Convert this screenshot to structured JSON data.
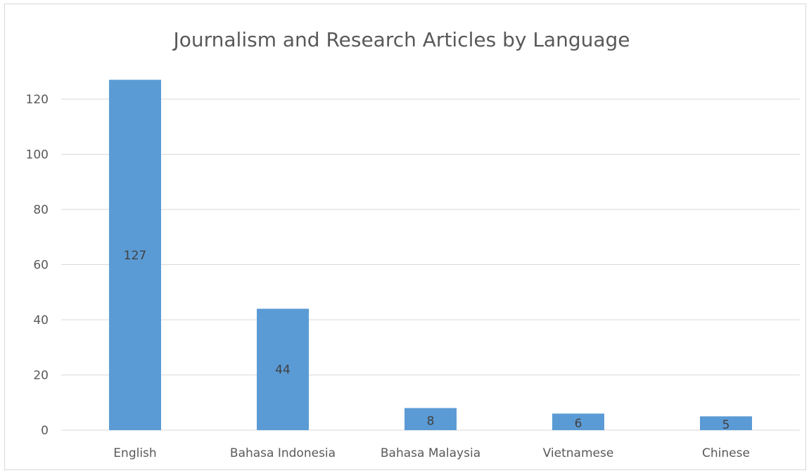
{
  "chart_data": {
    "type": "bar",
    "title": "Journalism and Research Articles by Language",
    "xlabel": "",
    "ylabel": "",
    "categories": [
      "English",
      "Bahasa Indonesia",
      "Bahasa Malaysia",
      "Vietnamese",
      "Chinese"
    ],
    "values": [
      127,
      44,
      8,
      6,
      5
    ],
    "data_labels": [
      "127",
      "44",
      "8",
      "6",
      "5"
    ],
    "ylim": [
      0,
      120
    ],
    "yticks": [
      0,
      20,
      40,
      60,
      80,
      100,
      120
    ],
    "grid": true,
    "legend": "none",
    "bar_color": "#5b9bd5"
  }
}
